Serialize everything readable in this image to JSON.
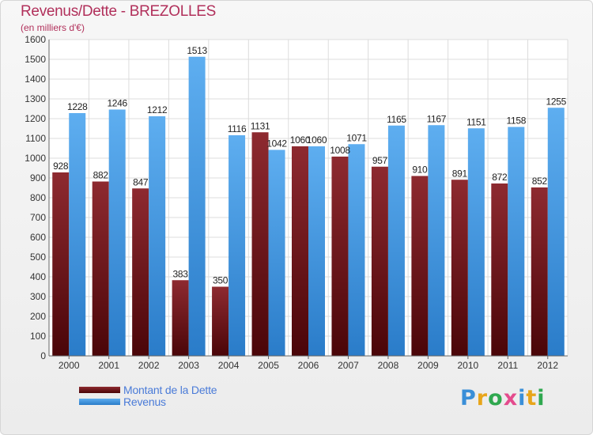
{
  "title": "Revenus/Dette - BREZOLLES",
  "subtitle": "(en milliers d'€)",
  "logo": "Proxiti",
  "colors": {
    "debt_top": "#8e2a30",
    "debt_bottom": "#4a0508",
    "rev_top": "#5eaef0",
    "rev_bottom": "#2a7cc9",
    "title": "#b1305b",
    "legend_text": "#4a7bd8"
  },
  "chart_data": {
    "type": "bar",
    "title": "Revenus/Dette - BREZOLLES",
    "ylabel": "(en milliers d'€)",
    "categories": [
      "2000",
      "2001",
      "2002",
      "2003",
      "2004",
      "2005",
      "2006",
      "2007",
      "2008",
      "2009",
      "2010",
      "2011",
      "2012"
    ],
    "series": [
      {
        "name": "Montant de la Dette",
        "values": [
          928,
          882,
          847,
          383,
          350,
          1131,
          1060,
          1008,
          957,
          910,
          891,
          872,
          852
        ]
      },
      {
        "name": "Revenus",
        "values": [
          1228,
          1246,
          1212,
          1513,
          1116,
          1042,
          1060,
          1071,
          1165,
          1167,
          1151,
          1158,
          1255
        ]
      }
    ],
    "ylim": [
      0,
      1600
    ],
    "yticks": [
      0,
      100,
      200,
      300,
      400,
      500,
      600,
      700,
      800,
      900,
      1000,
      1100,
      1200,
      1300,
      1400,
      1500,
      1600
    ],
    "grid": true,
    "legend_position": "bottom-left"
  }
}
